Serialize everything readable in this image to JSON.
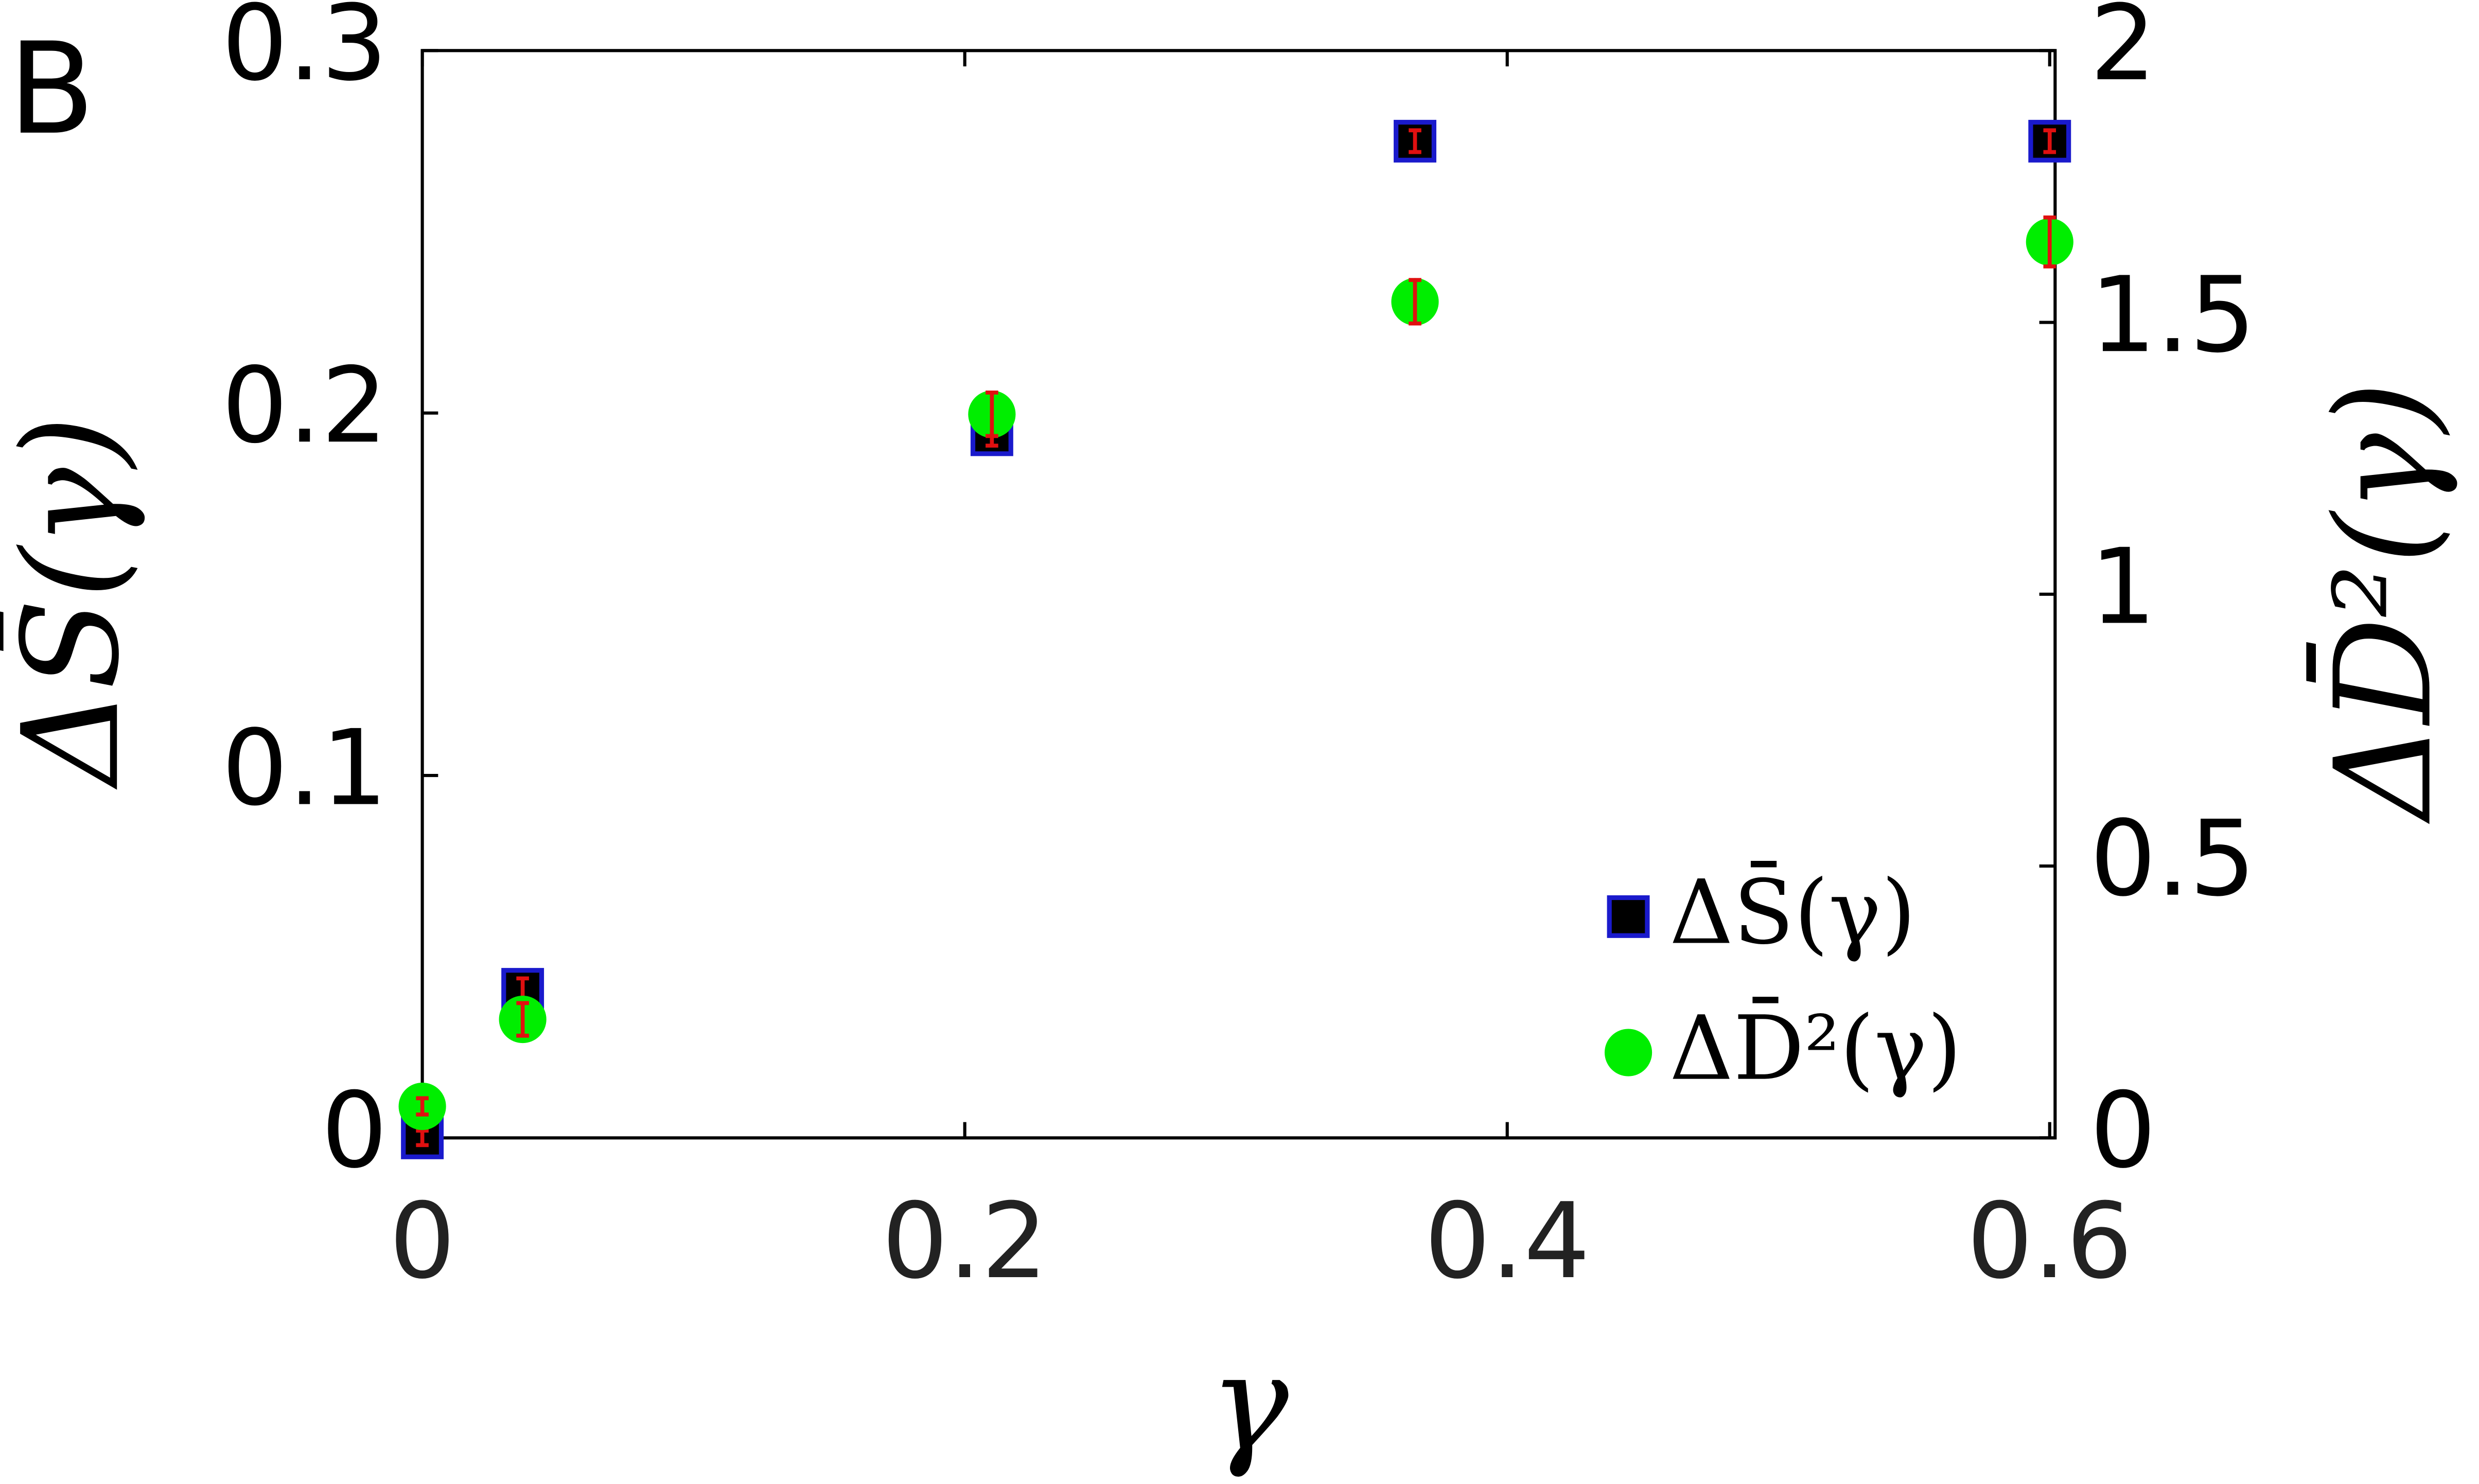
{
  "chart_data": {
    "type": "scatter",
    "panel_label": "B",
    "xlabel": "γ",
    "ylabel": "ΔS̄(γ)",
    "y2label": "ΔD̄²(γ)",
    "xlim": [
      0,
      0.602
    ],
    "xticks": [
      0,
      0.2,
      0.4,
      0.6
    ],
    "ylim": [
      0,
      0.3
    ],
    "yticks": [
      0,
      0.1,
      0.2,
      0.3
    ],
    "y2lim": [
      0,
      2
    ],
    "y2ticks": [
      0,
      0.5,
      1,
      1.5,
      2
    ],
    "legend": "lower right",
    "error_color": "#e01010",
    "series": [
      {
        "name": "ΔS̄(γ)",
        "marker": "square",
        "color": "#000000",
        "edgecolor": "#1a1acc",
        "x": [
          0,
          0.037,
          0.21,
          0.366,
          0.6
        ],
        "values": [
          0,
          0.041,
          0.194,
          0.275,
          0.275
        ],
        "errors": [
          0.002,
          0.003,
          0.003,
          0.003,
          0.003
        ]
      },
      {
        "name": "ΔD̄²(γ)",
        "marker": "circle",
        "color": "#00ee00",
        "axis": "y2",
        "x": [
          0,
          0.037,
          0.21,
          0.366,
          0.6
        ],
        "values": [
          0.058,
          0.218,
          1.331,
          1.538,
          1.648
        ],
        "errors": [
          0.015,
          0.03,
          0.04,
          0.04,
          0.045
        ]
      }
    ]
  }
}
